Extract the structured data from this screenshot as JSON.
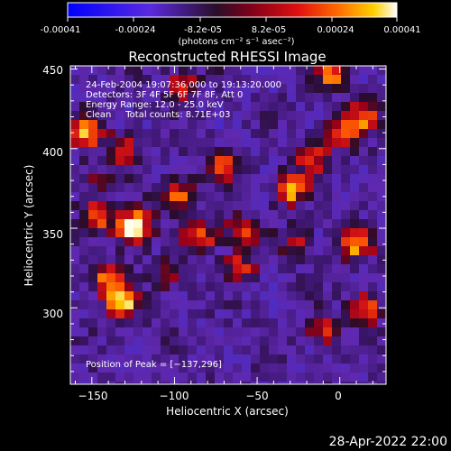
{
  "colorbar": {
    "tick_labels": [
      "-0.00041",
      "-0.00024",
      "-8.2e-05",
      "8.2e-05",
      "0.00024",
      "0.00041"
    ],
    "unit_label": "(photons cm⁻² s⁻¹ asec⁻²)",
    "range": [
      -0.00041,
      0.00041
    ],
    "colors": [
      "#0000ff",
      "#6a2fd6",
      "#2a1130",
      "#c8001e",
      "#ff5a00",
      "#ffd200",
      "#ffffff"
    ]
  },
  "plot": {
    "title": "Reconstructed RHESSI Image",
    "xlabel": "Heliocentric X (arcsec)",
    "ylabel": "Heliocentric Y (arcsec)",
    "xlim": [
      -163,
      28
    ],
    "ylim": [
      252,
      452
    ],
    "x_ticks": [
      -150,
      -100,
      -50,
      0
    ],
    "y_ticks": [
      300,
      350,
      400,
      450
    ],
    "x_tick_labels": [
      "−150",
      "−100",
      "−50",
      "0"
    ],
    "y_tick_labels": [
      "300",
      "350",
      "400",
      "450"
    ],
    "annotations": [
      "24-Feb-2004 19:07:36.000 to 19:13:20.000",
      "Detectors: 3F 4F 5F 6F 7F 8F, Att 0",
      "Energy Range: 12.0 - 25.0 keV",
      "Clean     Total counts: 8.71E+03"
    ],
    "peak_label": "Position of Peak = [−137,296]",
    "peak_position": [
      -137,
      296
    ]
  },
  "bright_spots": [
    {
      "x": -132,
      "y": 303,
      "s": 0.95
    },
    {
      "x": -140,
      "y": 318,
      "s": 0.7
    },
    {
      "x": -127,
      "y": 348,
      "s": 0.75
    },
    {
      "x": -147,
      "y": 358,
      "s": 0.7
    },
    {
      "x": -122,
      "y": 355,
      "s": 0.7
    },
    {
      "x": -152,
      "y": 410,
      "s": 0.75
    },
    {
      "x": -130,
      "y": 400,
      "s": 0.6
    },
    {
      "x": -98,
      "y": 372,
      "s": 0.7
    },
    {
      "x": -70,
      "y": 390,
      "s": 0.6
    },
    {
      "x": -84,
      "y": 345,
      "s": 0.75
    },
    {
      "x": -60,
      "y": 348,
      "s": 0.6
    },
    {
      "x": -95,
      "y": 440,
      "s": 0.6
    },
    {
      "x": -30,
      "y": 375,
      "s": 0.95
    },
    {
      "x": -17,
      "y": 395,
      "s": 0.65
    },
    {
      "x": 0,
      "y": 410,
      "s": 0.7
    },
    {
      "x": 15,
      "y": 420,
      "s": 0.7
    },
    {
      "x": -5,
      "y": 445,
      "s": 0.65
    },
    {
      "x": 10,
      "y": 340,
      "s": 0.75
    },
    {
      "x": 15,
      "y": 300,
      "s": 0.7
    },
    {
      "x": -10,
      "y": 285,
      "s": 0.55
    },
    {
      "x": -60,
      "y": 325,
      "s": 0.55
    },
    {
      "x": -105,
      "y": 320,
      "s": 0.45
    },
    {
      "x": -25,
      "y": 340,
      "s": 0.4
    },
    {
      "x": -150,
      "y": 380,
      "s": 0.35
    }
  ],
  "timestamp": "28-Apr-2022 22:00"
}
